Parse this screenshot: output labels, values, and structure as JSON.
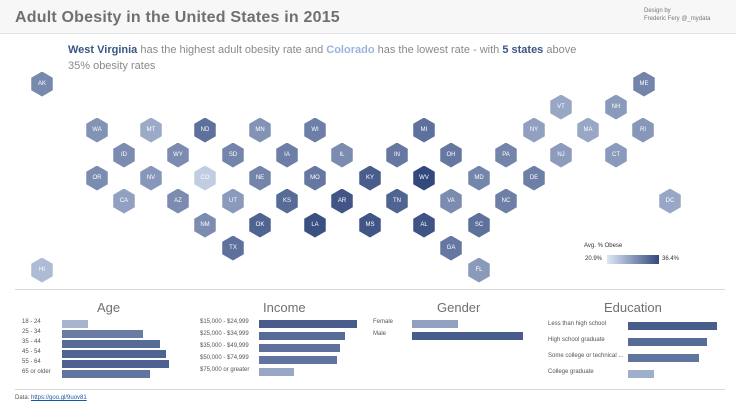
{
  "header": {
    "title": "Adult Obesity in the United States in 2015",
    "credit_line1": "Design by",
    "credit_line2": "Frederic Fery @_mydata"
  },
  "headline": {
    "p1": "West Virginia",
    "p2": " has the highest adult obesity rate and ",
    "p3": "Colorado",
    "p4": " has the lowest rate - with ",
    "p5": "5 states",
    "p6": " above 35% obesity rates"
  },
  "legend": {
    "title": "Avg. % Obese",
    "min": "20.9%",
    "max": "36.4%"
  },
  "colors": {
    "low": "#dde7f6",
    "high": "#33497d"
  },
  "states": [
    {
      "abbr": "AK",
      "value": 0.52
    },
    {
      "abbr": "ME",
      "value": 0.55
    },
    {
      "abbr": "VT",
      "value": 0.3
    },
    {
      "abbr": "NH",
      "value": 0.4
    },
    {
      "abbr": "WA",
      "value": 0.45
    },
    {
      "abbr": "MT",
      "value": 0.28
    },
    {
      "abbr": "ND",
      "value": 0.7
    },
    {
      "abbr": "MN",
      "value": 0.45
    },
    {
      "abbr": "WI",
      "value": 0.6
    },
    {
      "abbr": "MI",
      "value": 0.7
    },
    {
      "abbr": "NY",
      "value": 0.35
    },
    {
      "abbr": "MA",
      "value": 0.3
    },
    {
      "abbr": "RI",
      "value": 0.42
    },
    {
      "abbr": "ID",
      "value": 0.5
    },
    {
      "abbr": "WY",
      "value": 0.5
    },
    {
      "abbr": "SD",
      "value": 0.55
    },
    {
      "abbr": "IA",
      "value": 0.6
    },
    {
      "abbr": "IL",
      "value": 0.5
    },
    {
      "abbr": "IN",
      "value": 0.65
    },
    {
      "abbr": "OH",
      "value": 0.65
    },
    {
      "abbr": "PA",
      "value": 0.55
    },
    {
      "abbr": "NJ",
      "value": 0.38
    },
    {
      "abbr": "CT",
      "value": 0.4
    },
    {
      "abbr": "OR",
      "value": 0.5
    },
    {
      "abbr": "NV",
      "value": 0.42
    },
    {
      "abbr": "CO",
      "value": 0.02
    },
    {
      "abbr": "NE",
      "value": 0.55
    },
    {
      "abbr": "MO",
      "value": 0.65
    },
    {
      "abbr": "KY",
      "value": 0.85
    },
    {
      "abbr": "WV",
      "value": 1.0
    },
    {
      "abbr": "MD",
      "value": 0.55
    },
    {
      "abbr": "DE",
      "value": 0.6
    },
    {
      "abbr": "CA",
      "value": 0.35
    },
    {
      "abbr": "AZ",
      "value": 0.5
    },
    {
      "abbr": "UT",
      "value": 0.4
    },
    {
      "abbr": "KS",
      "value": 0.75
    },
    {
      "abbr": "AR",
      "value": 0.9
    },
    {
      "abbr": "TN",
      "value": 0.8
    },
    {
      "abbr": "VA",
      "value": 0.5
    },
    {
      "abbr": "NC",
      "value": 0.6
    },
    {
      "abbr": "DC",
      "value": 0.3
    },
    {
      "abbr": "NM",
      "value": 0.5
    },
    {
      "abbr": "OK",
      "value": 0.8
    },
    {
      "abbr": "LA",
      "value": 0.95
    },
    {
      "abbr": "MS",
      "value": 0.9
    },
    {
      "abbr": "AL",
      "value": 0.92
    },
    {
      "abbr": "SC",
      "value": 0.7
    },
    {
      "abbr": "TX",
      "value": 0.7
    },
    {
      "abbr": "GA",
      "value": 0.65
    },
    {
      "abbr": "HI",
      "value": 0.15
    },
    {
      "abbr": "FL",
      "value": 0.4
    }
  ],
  "age": {
    "title": "Age",
    "rows": [
      {
        "label": "18 - 24",
        "value": 0.2
      },
      {
        "label": "25 - 34",
        "value": 0.62
      },
      {
        "label": "35 - 44",
        "value": 0.75
      },
      {
        "label": "45 - 54",
        "value": 0.8
      },
      {
        "label": "55 - 64",
        "value": 0.82
      },
      {
        "label": "65 or older",
        "value": 0.68
      }
    ]
  },
  "income": {
    "title": "Income",
    "rows": [
      {
        "label": "$15,000 - $24,999",
        "value": 0.85
      },
      {
        "label": "$25,000 - $34,999",
        "value": 0.75
      },
      {
        "label": "$35,000 - $49,999",
        "value": 0.7
      },
      {
        "label": "$50,000 - $74,999",
        "value": 0.68
      },
      {
        "label": "$75,000 or greater",
        "value": 0.3
      }
    ]
  },
  "gender": {
    "title": "Gender",
    "rows": [
      {
        "label": "Female",
        "value": 0.35
      },
      {
        "label": "Male",
        "value": 0.85
      }
    ]
  },
  "education": {
    "title": "Education",
    "rows": [
      {
        "label": "Less than high school",
        "value": 0.85
      },
      {
        "label": "High school graduate",
        "value": 0.75
      },
      {
        "label": "Some college or technical ...",
        "value": 0.68
      },
      {
        "label": "College graduate",
        "value": 0.25
      }
    ]
  },
  "footer": {
    "label": "Data:",
    "link": "https://goo.gl/9uov81"
  }
}
